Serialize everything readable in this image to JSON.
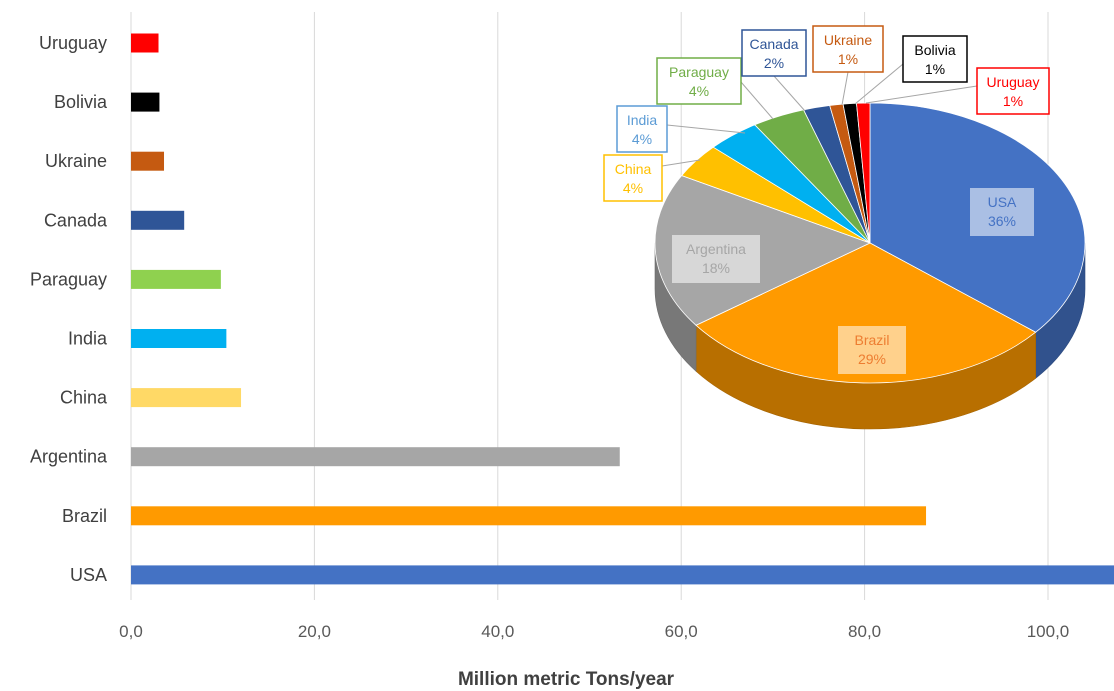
{
  "chart_data": [
    {
      "type": "bar",
      "orientation": "horizontal",
      "categories": [
        "Uruguay",
        "Bolivia",
        "Ukraine",
        "Canada",
        "Paraguay",
        "India",
        "China",
        "Argentina",
        "Brazil",
        "USA"
      ],
      "values": [
        3.0,
        3.1,
        3.6,
        5.8,
        9.8,
        10.4,
        12.0,
        53.3,
        86.7,
        108.0
      ],
      "colors": [
        "#ff0000",
        "#000000",
        "#c55a11",
        "#2f5597",
        "#8fd14f",
        "#00b0f0",
        "#ffd966",
        "#a6a6a6",
        "#ff9a00",
        "#4472c4"
      ],
      "xlabel": "Million metric Tons/year",
      "xticks": [
        "0,0",
        "20,0",
        "40,0",
        "60,0",
        "80,0",
        "100,0"
      ],
      "xtick_values": [
        0,
        20,
        40,
        60,
        80,
        100
      ],
      "xlim": [
        0,
        107
      ],
      "grid": "vertical"
    },
    {
      "type": "pie",
      "style": "3d",
      "slices": [
        {
          "label": "USA",
          "percent_label": "36%",
          "value": 36,
          "color": "#4472c4",
          "label_color": "#4472c4"
        },
        {
          "label": "Brazil",
          "percent_label": "29%",
          "value": 29,
          "color": "#ff9a00",
          "label_color": "#ed7d31"
        },
        {
          "label": "Argentina",
          "percent_label": "18%",
          "value": 18,
          "color": "#a6a6a6",
          "label_color": "#a6a6a6"
        },
        {
          "label": "China",
          "percent_label": "4%",
          "value": 4,
          "color": "#ffc000",
          "label_color": "#ffc000"
        },
        {
          "label": "India",
          "percent_label": "4%",
          "value": 4,
          "color": "#00b0f0",
          "label_color": "#5b9bd5"
        },
        {
          "label": "Paraguay",
          "percent_label": "4%",
          "value": 4,
          "color": "#70ad47",
          "label_color": "#70ad47"
        },
        {
          "label": "Canada",
          "percent_label": "2%",
          "value": 2,
          "color": "#2f5597",
          "label_color": "#2f5597"
        },
        {
          "label": "Ukraine",
          "percent_label": "1%",
          "value": 1,
          "color": "#c55a11",
          "label_color": "#c55a11"
        },
        {
          "label": "Bolivia",
          "percent_label": "1%",
          "value": 1,
          "color": "#000000",
          "label_color": "#000000"
        },
        {
          "label": "Uruguay",
          "percent_label": "1%",
          "value": 1,
          "color": "#ff0000",
          "label_color": "#ff0000"
        }
      ]
    }
  ]
}
